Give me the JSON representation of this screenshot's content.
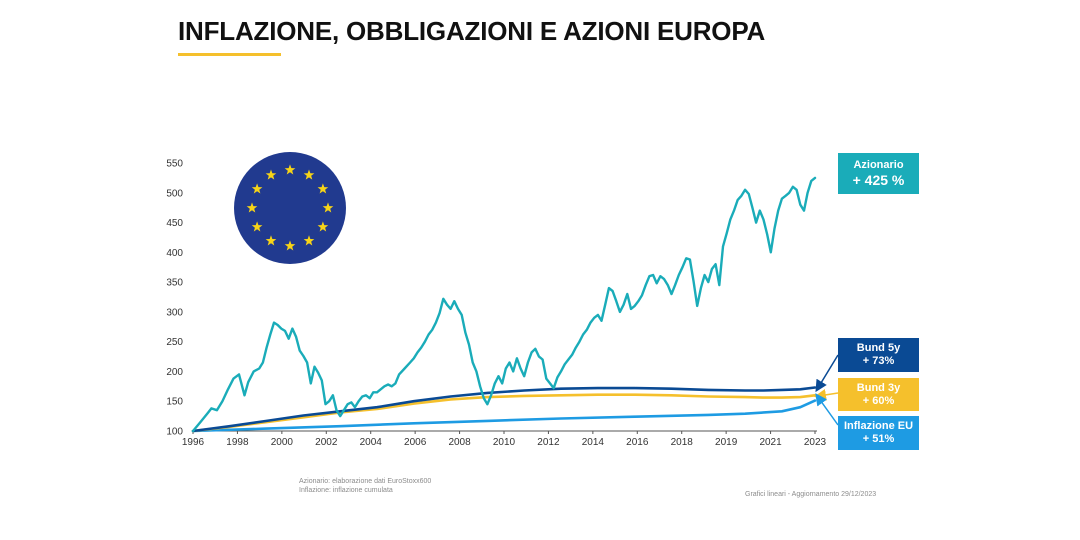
{
  "page": {
    "title": "INFLAZIONE, OBBLIGAZIONI E AZIONI EUROPA",
    "source_line1": "Azionario: elaborazione dati EuroStoxx600",
    "source_line2": "Inflazione: inflazione cumulata",
    "footer_right": "Grafici lineari - Aggiornamento 29/12/2023"
  },
  "colors": {
    "equity": "#1aacb9",
    "bund5": "#0a4a94",
    "bund3": "#f5c02c",
    "inflation": "#1e9be3",
    "title_underline": "#f5c02c",
    "eu_flag_blue": "#213a8f",
    "eu_flag_star": "#f7d417"
  },
  "flag": {
    "icon": "eu-flag-icon",
    "star_count": 12
  },
  "labels": {
    "equity": {
      "name": "Azionario",
      "change": "+ 425 %"
    },
    "bund5": {
      "name": "Bund 5y",
      "change": "+ 73%"
    },
    "bund3": {
      "name": "Bund 3y",
      "change": "+ 60%"
    },
    "inflation": {
      "name": "Inflazione EU",
      "change": "+ 51%"
    }
  },
  "chart_data": {
    "type": "line",
    "title": "INFLAZIONE, OBBLIGAZIONI E AZIONI EUROPA",
    "xlabel": "",
    "ylabel": "",
    "ylim": [
      100,
      550
    ],
    "yticks": [
      "100",
      "150",
      "200",
      "250",
      "300",
      "350",
      "400",
      "450",
      "500",
      "550"
    ],
    "xticks": [
      "1996",
      "1998",
      "2000",
      "2002",
      "2004",
      "2006",
      "2008",
      "2010",
      "2012",
      "2014",
      "2016",
      "2018",
      "2019",
      "2021",
      "2023"
    ],
    "grid": false,
    "series": [
      {
        "name": "Azionario",
        "key": "equity",
        "points": [
          [
            0,
            100
          ],
          [
            0.4,
            115
          ],
          [
            0.8,
            130
          ],
          [
            1.0,
            138
          ],
          [
            1.3,
            135
          ],
          [
            1.6,
            150
          ],
          [
            1.9,
            170
          ],
          [
            2.2,
            188
          ],
          [
            2.5,
            195
          ],
          [
            2.8,
            160
          ],
          [
            3.0,
            182
          ],
          [
            3.3,
            200
          ],
          [
            3.6,
            205
          ],
          [
            3.8,
            215
          ],
          [
            4.0,
            240
          ],
          [
            4.2,
            262
          ],
          [
            4.4,
            282
          ],
          [
            4.6,
            278
          ],
          [
            4.8,
            272
          ],
          [
            5.0,
            268
          ],
          [
            5.2,
            255
          ],
          [
            5.4,
            272
          ],
          [
            5.6,
            258
          ],
          [
            5.8,
            235
          ],
          [
            6.0,
            226
          ],
          [
            6.2,
            215
          ],
          [
            6.4,
            180
          ],
          [
            6.6,
            208
          ],
          [
            6.8,
            198
          ],
          [
            7.0,
            185
          ],
          [
            7.2,
            145
          ],
          [
            7.4,
            150
          ],
          [
            7.6,
            160
          ],
          [
            7.8,
            135
          ],
          [
            8.0,
            125
          ],
          [
            8.2,
            135
          ],
          [
            8.4,
            145
          ],
          [
            8.6,
            148
          ],
          [
            8.8,
            140
          ],
          [
            9.0,
            150
          ],
          [
            9.2,
            158
          ],
          [
            9.4,
            160
          ],
          [
            9.6,
            155
          ],
          [
            9.8,
            165
          ],
          [
            10.0,
            165
          ],
          [
            10.2,
            170
          ],
          [
            10.4,
            175
          ],
          [
            10.6,
            178
          ],
          [
            10.8,
            175
          ],
          [
            11.0,
            180
          ],
          [
            11.2,
            195
          ],
          [
            11.5,
            205
          ],
          [
            11.8,
            215
          ],
          [
            12.0,
            222
          ],
          [
            12.2,
            232
          ],
          [
            12.4,
            240
          ],
          [
            12.6,
            250
          ],
          [
            12.8,
            262
          ],
          [
            13.0,
            270
          ],
          [
            13.2,
            282
          ],
          [
            13.4,
            298
          ],
          [
            13.6,
            322
          ],
          [
            13.8,
            312
          ],
          [
            14.0,
            305
          ],
          [
            14.2,
            318
          ],
          [
            14.4,
            305
          ],
          [
            14.6,
            295
          ],
          [
            14.8,
            265
          ],
          [
            15.0,
            245
          ],
          [
            15.2,
            215
          ],
          [
            15.4,
            200
          ],
          [
            15.6,
            175
          ],
          [
            15.8,
            155
          ],
          [
            16.0,
            145
          ],
          [
            16.2,
            160
          ],
          [
            16.4,
            180
          ],
          [
            16.6,
            192
          ],
          [
            16.8,
            180
          ],
          [
            17.0,
            205
          ],
          [
            17.2,
            215
          ],
          [
            17.4,
            200
          ],
          [
            17.6,
            222
          ],
          [
            17.8,
            205
          ],
          [
            18.0,
            192
          ],
          [
            18.2,
            215
          ],
          [
            18.4,
            232
          ],
          [
            18.6,
            238
          ],
          [
            18.8,
            225
          ],
          [
            19.0,
            220
          ],
          [
            19.2,
            188
          ],
          [
            19.4,
            180
          ],
          [
            19.6,
            172
          ],
          [
            19.8,
            190
          ],
          [
            20.0,
            200
          ],
          [
            20.2,
            212
          ],
          [
            20.4,
            220
          ],
          [
            20.6,
            228
          ],
          [
            20.8,
            240
          ],
          [
            21.0,
            250
          ],
          [
            21.2,
            262
          ],
          [
            21.4,
            270
          ],
          [
            21.6,
            282
          ],
          [
            21.8,
            290
          ],
          [
            22.0,
            295
          ],
          [
            22.2,
            285
          ],
          [
            22.4,
            312
          ],
          [
            22.6,
            340
          ],
          [
            22.8,
            335
          ],
          [
            23.0,
            318
          ],
          [
            23.2,
            300
          ],
          [
            23.4,
            312
          ],
          [
            23.6,
            330
          ],
          [
            23.8,
            305
          ],
          [
            24.0,
            310
          ],
          [
            24.2,
            318
          ],
          [
            24.4,
            328
          ],
          [
            24.6,
            345
          ],
          [
            24.8,
            360
          ],
          [
            25.0,
            362
          ],
          [
            25.2,
            348
          ],
          [
            25.4,
            360
          ],
          [
            25.6,
            355
          ],
          [
            25.8,
            345
          ],
          [
            26.0,
            330
          ],
          [
            26.2,
            345
          ],
          [
            26.4,
            362
          ],
          [
            26.6,
            375
          ],
          [
            26.8,
            390
          ],
          [
            27.0,
            388
          ],
          [
            27.2,
            352
          ],
          [
            27.4,
            310
          ],
          [
            27.6,
            340
          ],
          [
            27.8,
            362
          ],
          [
            28.0,
            350
          ],
          [
            28.2,
            372
          ],
          [
            28.4,
            380
          ],
          [
            28.6,
            345
          ],
          [
            28.8,
            410
          ],
          [
            29.0,
            432
          ],
          [
            29.2,
            455
          ],
          [
            29.4,
            470
          ],
          [
            29.6,
            488
          ],
          [
            29.8,
            495
          ],
          [
            30.0,
            505
          ],
          [
            30.2,
            498
          ],
          [
            30.4,
            475
          ],
          [
            30.6,
            450
          ],
          [
            30.8,
            470
          ],
          [
            31.0,
            455
          ],
          [
            31.2,
            430
          ],
          [
            31.4,
            400
          ],
          [
            31.6,
            440
          ],
          [
            31.8,
            470
          ],
          [
            32.0,
            490
          ],
          [
            32.2,
            495
          ],
          [
            32.4,
            500
          ],
          [
            32.6,
            510
          ],
          [
            32.8,
            505
          ],
          [
            33.0,
            480
          ],
          [
            33.2,
            470
          ],
          [
            33.4,
            500
          ],
          [
            33.6,
            520
          ],
          [
            33.8,
            525
          ]
        ]
      },
      {
        "name": "Bund 5y",
        "key": "bund5",
        "points": [
          [
            0,
            100
          ],
          [
            2.0,
            108
          ],
          [
            4.0,
            117
          ],
          [
            6.0,
            126
          ],
          [
            8.0,
            133
          ],
          [
            10.0,
            140
          ],
          [
            12.0,
            150
          ],
          [
            14.0,
            158
          ],
          [
            16.0,
            164
          ],
          [
            18.0,
            168
          ],
          [
            20.0,
            171
          ],
          [
            22.0,
            172
          ],
          [
            24.0,
            172
          ],
          [
            26.0,
            171
          ],
          [
            28.0,
            169
          ],
          [
            30.0,
            168
          ],
          [
            31.0,
            168
          ],
          [
            32.0,
            169
          ],
          [
            33.0,
            170
          ],
          [
            33.8,
            173
          ]
        ]
      },
      {
        "name": "Bund 3y",
        "key": "bund3",
        "points": [
          [
            0,
            100
          ],
          [
            2.0,
            107
          ],
          [
            4.0,
            115
          ],
          [
            6.0,
            123
          ],
          [
            8.0,
            131
          ],
          [
            10.0,
            137
          ],
          [
            12.0,
            146
          ],
          [
            14.0,
            153
          ],
          [
            16.0,
            157
          ],
          [
            18.0,
            159
          ],
          [
            20.0,
            160
          ],
          [
            22.0,
            161
          ],
          [
            24.0,
            161
          ],
          [
            26.0,
            160
          ],
          [
            28.0,
            158
          ],
          [
            30.0,
            157
          ],
          [
            31.0,
            156
          ],
          [
            32.0,
            156
          ],
          [
            33.0,
            157
          ],
          [
            33.8,
            160
          ]
        ]
      },
      {
        "name": "Inflazione EU",
        "key": "inflation",
        "points": [
          [
            0,
            100
          ],
          [
            4.0,
            104
          ],
          [
            8.0,
            108
          ],
          [
            12.0,
            113
          ],
          [
            16.0,
            117
          ],
          [
            20.0,
            121
          ],
          [
            24.0,
            124
          ],
          [
            28.0,
            127
          ],
          [
            30.0,
            129
          ],
          [
            32.0,
            133
          ],
          [
            33.0,
            140
          ],
          [
            33.8,
            151
          ]
        ]
      }
    ]
  }
}
